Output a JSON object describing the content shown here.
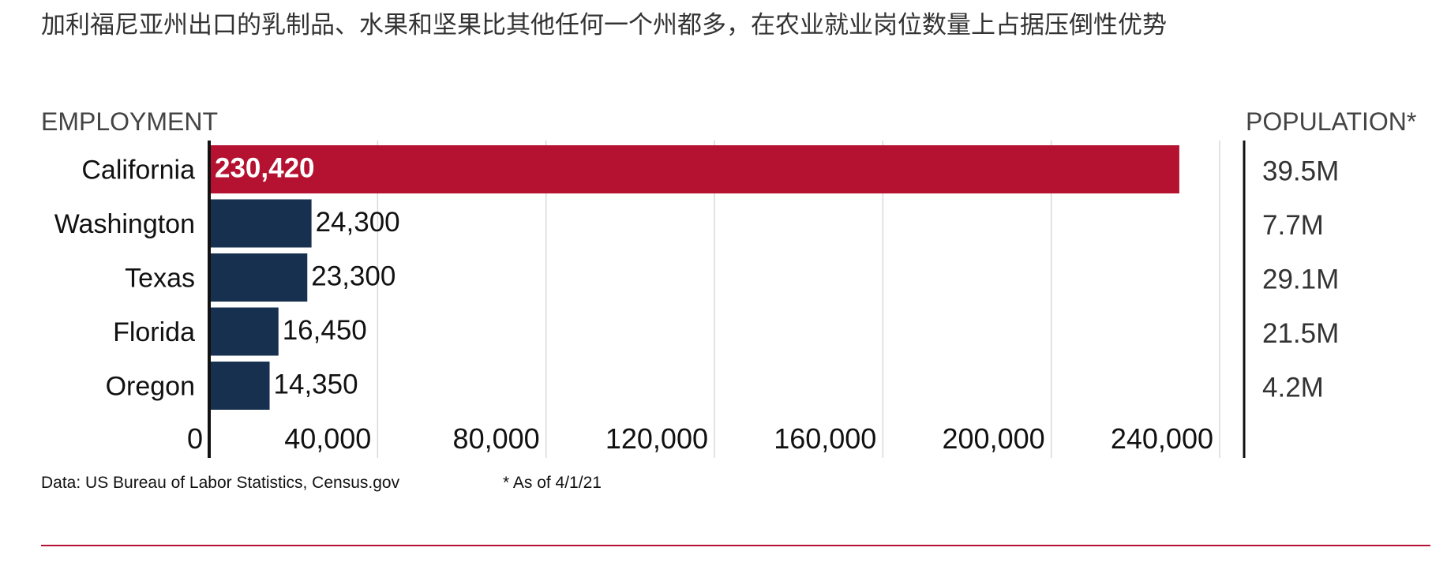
{
  "headline": "加利福尼亚州出口的乳制品、水果和坚果比其他任何一个州都多，在农业就业岗位数量上占据压倒性优势",
  "colors": {
    "highlight": "#b41230",
    "bar": "#17304f",
    "grid": "#d9d9d9",
    "axis": "#111111",
    "label": "#111111",
    "header": "#444444",
    "population": "#333333",
    "rule": "#b41230"
  },
  "chart_data": {
    "type": "bar",
    "orientation": "horizontal",
    "xlabel": "EMPLOYMENT",
    "secondary_label": "POPULATION*",
    "categories": [
      "California",
      "Washington",
      "Texas",
      "Florida",
      "Oregon"
    ],
    "values": [
      230420,
      24300,
      23300,
      16450,
      14350
    ],
    "value_labels": [
      "230,420",
      "24,300",
      "23,300",
      "16,450",
      "14,350"
    ],
    "population": [
      "39.5M",
      "7.7M",
      "29.1M",
      "21.5M",
      "4.2M"
    ],
    "highlight_index": 0,
    "xlim": [
      0,
      240000
    ],
    "x_ticks": [
      0,
      40000,
      80000,
      120000,
      160000,
      200000,
      240000
    ],
    "x_tick_labels": [
      "0",
      "40,000",
      "80,000",
      "120,000",
      "160,000",
      "200,000",
      "240,000"
    ],
    "grid": true,
    "legend": "none"
  },
  "footer": {
    "source": "Data: US Bureau of Labor Statistics, Census.gov",
    "note": "* As of 4/1/21"
  }
}
